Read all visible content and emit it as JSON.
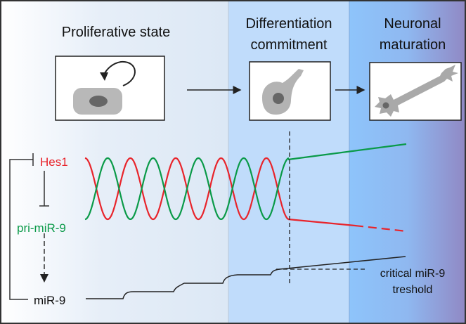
{
  "stages": [
    {
      "lines": [
        "Proliferative state"
      ]
    },
    {
      "lines": [
        "Differentiation",
        "commitment"
      ]
    },
    {
      "lines": [
        "Neuronal",
        "maturation"
      ]
    }
  ],
  "labels": {
    "hes1": "Hes1",
    "pri_mir9": "pri-miR-9",
    "mir9": "miR-9",
    "threshold_line1": "critical miR-9",
    "threshold_line2": "treshold"
  },
  "colors": {
    "hes1": "#e8242b",
    "pri_mir9": "#0a9a48",
    "mir9": "#222222",
    "panel_proliferative": "#dde9f5",
    "panel_commitment": "#c0dcfb",
    "panel_maturation_start": "#8ec4fb",
    "panel_maturation_end": "#9088c4"
  }
}
